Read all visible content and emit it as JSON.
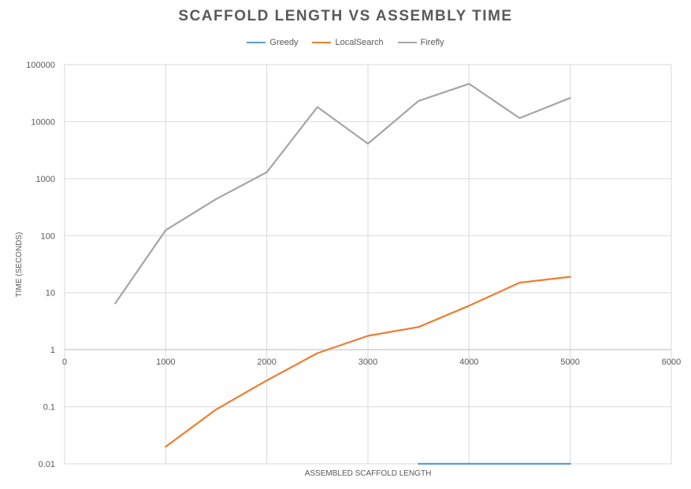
{
  "chart_data": {
    "type": "line",
    "title": "SCAFFOLD LENGTH VS ASSEMBLY TIME",
    "xlabel": "ASSEMBLED SCAFFOLD LENGTH",
    "ylabel": "TIME (SECONDS)",
    "xlim": [
      0,
      6000
    ],
    "ylim": [
      0.01,
      100000
    ],
    "yscale": "log",
    "x_ticks": [
      "0",
      "1000",
      "2000",
      "3000",
      "4000",
      "5000",
      "6000"
    ],
    "y_ticks": [
      "0.01",
      "0.1",
      "1",
      "10",
      "100",
      "1000",
      "10000",
      "100000"
    ],
    "grid": true,
    "legend_position": "top",
    "series": [
      {
        "name": "Greedy",
        "color": "#5b9bd5",
        "points": [
          [
            3500,
            0.01
          ],
          [
            4000,
            0.01
          ],
          [
            4500,
            0.01
          ],
          [
            5000,
            0.01
          ]
        ]
      },
      {
        "name": "LocalSearch",
        "color": "#ed7d31",
        "points": [
          [
            1000,
            0.02
          ],
          [
            1500,
            0.09
          ],
          [
            2000,
            0.29
          ],
          [
            2500,
            0.87
          ],
          [
            3000,
            1.75
          ],
          [
            3500,
            2.5
          ],
          [
            4000,
            5.9
          ],
          [
            4500,
            15
          ],
          [
            5000,
            19
          ]
        ]
      },
      {
        "name": "Firefly",
        "color": "#a5a5a5",
        "points": [
          [
            500,
            6.5
          ],
          [
            1000,
            125
          ],
          [
            1500,
            440
          ],
          [
            2000,
            1300
          ],
          [
            2500,
            18000
          ],
          [
            3000,
            4100
          ],
          [
            3500,
            23000
          ],
          [
            4000,
            46000
          ],
          [
            4500,
            11500
          ],
          [
            5000,
            26000
          ]
        ]
      }
    ]
  }
}
